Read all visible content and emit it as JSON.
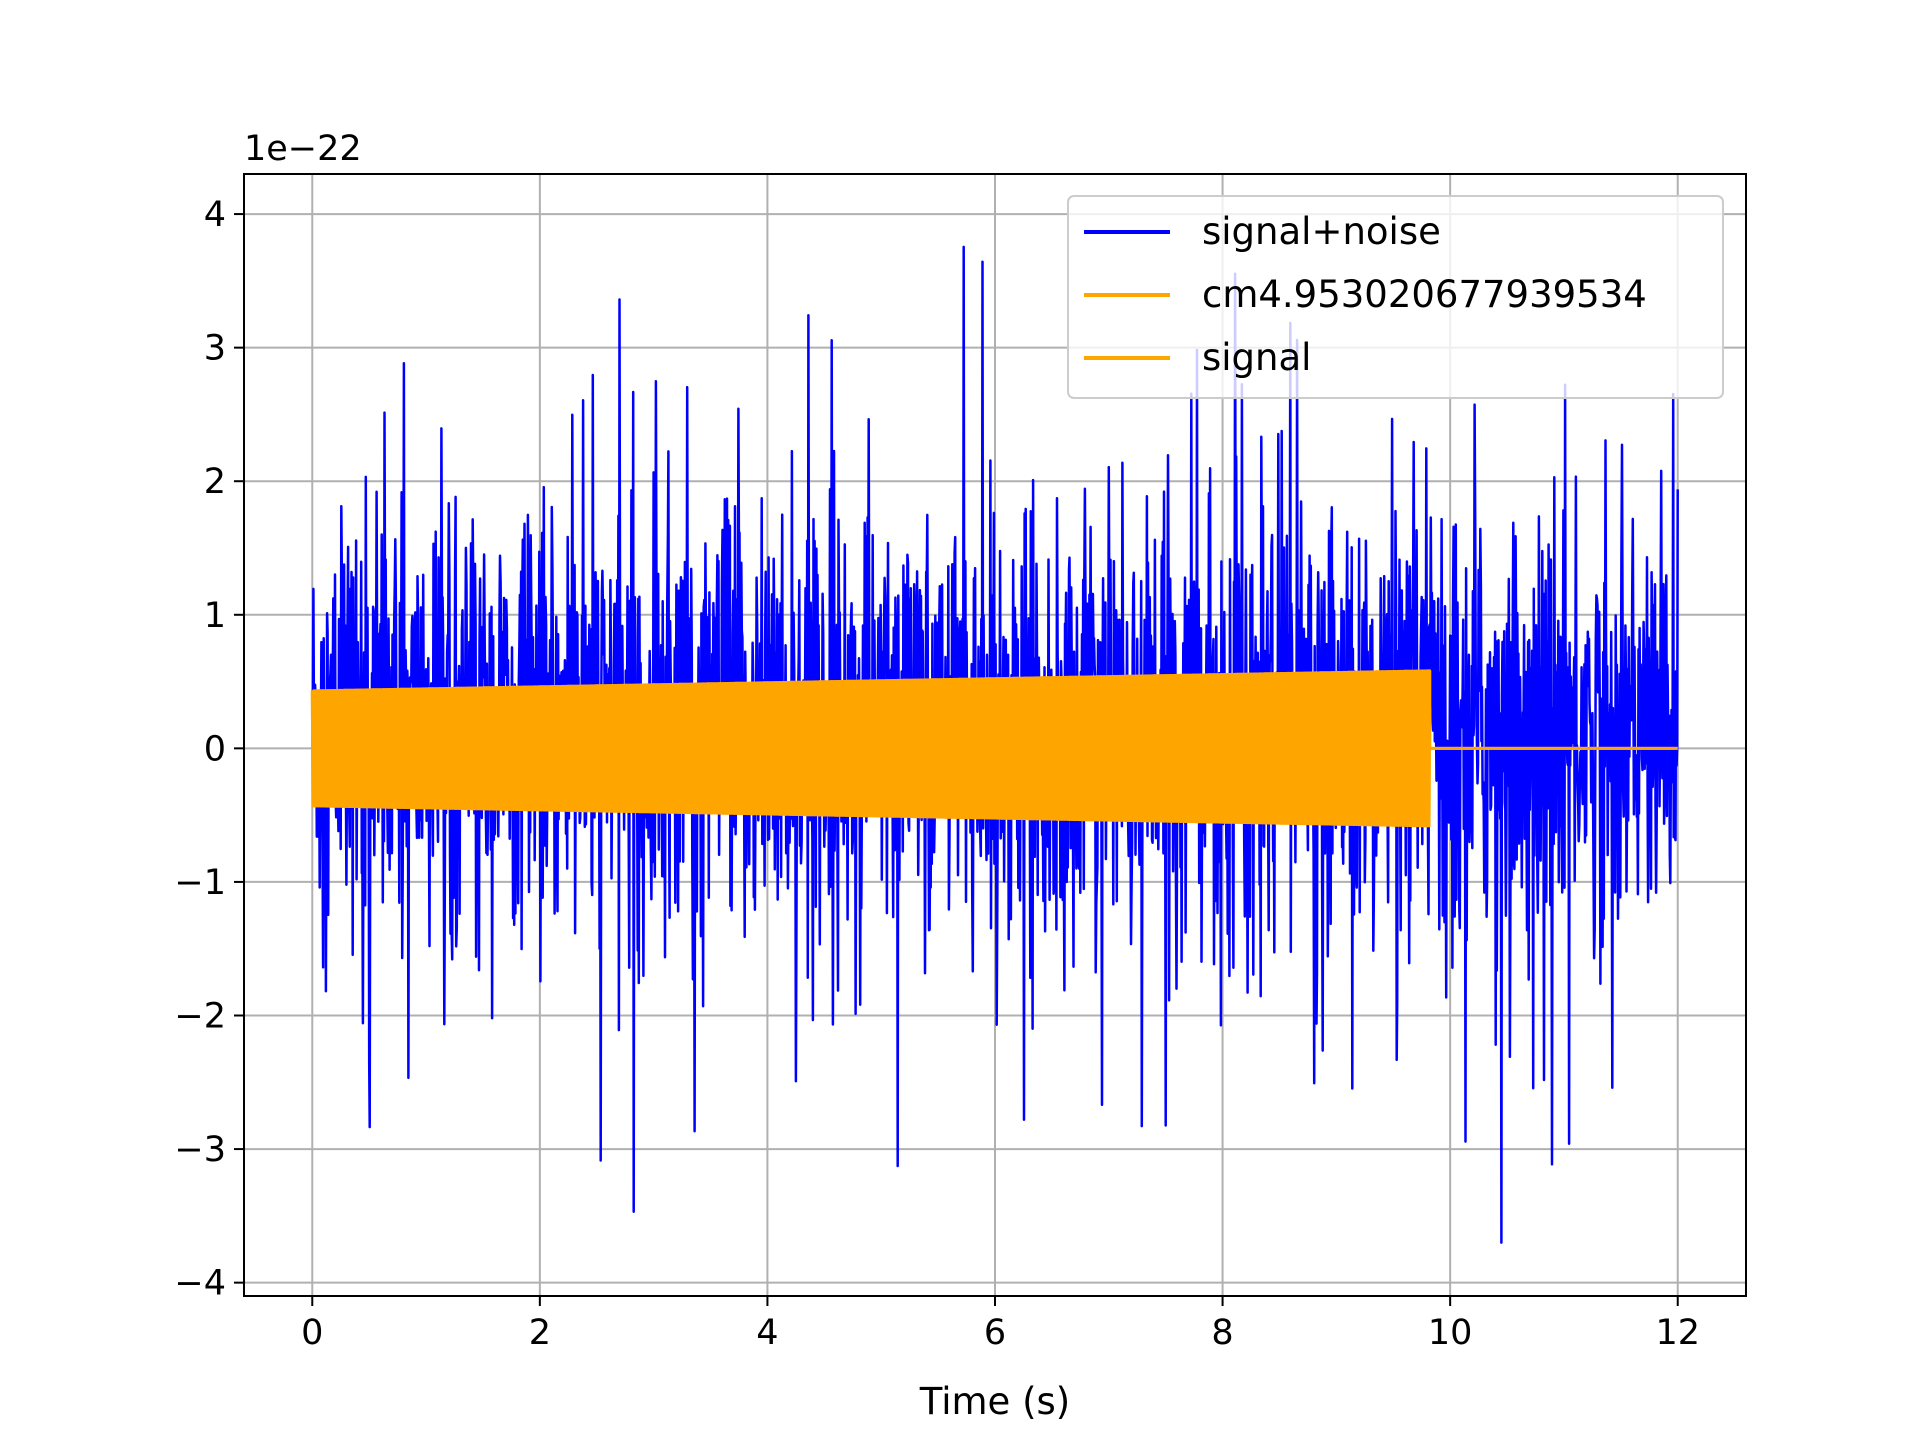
{
  "chart_data": {
    "type": "line",
    "title": "",
    "xlabel": "Time (s)",
    "ylabel": "",
    "y_offset_text": "1e−22",
    "xlim": [
      -0.6,
      12.6
    ],
    "ylim": [
      -4.1,
      4.3
    ],
    "xticks": [
      0,
      2,
      4,
      6,
      8,
      10,
      12
    ],
    "xtick_labels": [
      "0",
      "2",
      "4",
      "6",
      "8",
      "10",
      "12"
    ],
    "yticks": [
      -4,
      -3,
      -2,
      -1,
      0,
      1,
      2,
      3,
      4
    ],
    "ytick_labels": [
      "−4",
      "−3",
      "−2",
      "−1",
      "0",
      "1",
      "2",
      "3",
      "4"
    ],
    "grid": true,
    "legend_position": "top-right",
    "series": [
      {
        "name": "signal+noise",
        "color": "#0000ff",
        "x_range": [
          0,
          12
        ],
        "typical_envelope": [
          -1.7,
          2.0
        ],
        "extremes": [
          -3.7,
          3.9
        ],
        "style": "dense noisy oscillation"
      },
      {
        "name": "cm4.953020677939534",
        "color": "#ffa500",
        "x_range": [
          0,
          12
        ],
        "amplitude_at_start": 0.43,
        "amplitude_at_end": 0.58,
        "end_time": 9.82,
        "style": "dense sinusoid, zero after end_time"
      },
      {
        "name": "signal",
        "color": "#ffa500",
        "x_range": [
          0,
          12
        ],
        "amplitude_at_start": 0.43,
        "amplitude_at_end": 0.58,
        "end_time": 9.82,
        "style": "dense sinusoid, zero after end_time"
      }
    ]
  }
}
